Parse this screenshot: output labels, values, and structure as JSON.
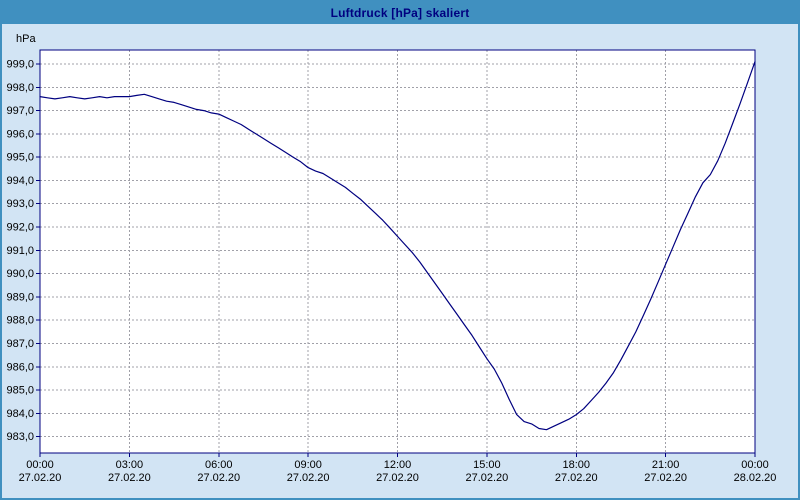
{
  "title": "Luftdruck [hPa] skaliert",
  "colors": {
    "titlebar_bg": "#4090c0",
    "titlebar_text": "#000080",
    "window_bg": "#d2e4f4",
    "plot_bg": "#ffffff",
    "plot_border": "#000080",
    "grid": "#a0a0a8",
    "line": "#000080",
    "tick_text": "#000000"
  },
  "chart_data": {
    "type": "line",
    "title": "Luftdruck [hPa] skaliert",
    "xlabel": "",
    "ylabel": "hPa",
    "xlim": [
      0,
      24
    ],
    "ylim": [
      982.3,
      999.6
    ],
    "grid": "dashed",
    "legend": "none",
    "y_ticks": [
      {
        "value": 999,
        "label": "999,0"
      },
      {
        "value": 998,
        "label": "998,0"
      },
      {
        "value": 997,
        "label": "997,0"
      },
      {
        "value": 996,
        "label": "996,0"
      },
      {
        "value": 995,
        "label": "995,0"
      },
      {
        "value": 994,
        "label": "994,0"
      },
      {
        "value": 993,
        "label": "993,0"
      },
      {
        "value": 992,
        "label": "992,0"
      },
      {
        "value": 991,
        "label": "991,0"
      },
      {
        "value": 990,
        "label": "990,0"
      },
      {
        "value": 989,
        "label": "989,0"
      },
      {
        "value": 988,
        "label": "988,0"
      },
      {
        "value": 987,
        "label": "987,0"
      },
      {
        "value": 986,
        "label": "986,0"
      },
      {
        "value": 985,
        "label": "985,0"
      },
      {
        "value": 984,
        "label": "984,0"
      },
      {
        "value": 983,
        "label": "983,0"
      }
    ],
    "x_ticks": [
      {
        "hour": 0,
        "time": "00:00",
        "date": "27.02.20"
      },
      {
        "hour": 3,
        "time": "03:00",
        "date": "27.02.20"
      },
      {
        "hour": 6,
        "time": "06:00",
        "date": "27.02.20"
      },
      {
        "hour": 9,
        "time": "09:00",
        "date": "27.02.20"
      },
      {
        "hour": 12,
        "time": "12:00",
        "date": "27.02.20"
      },
      {
        "hour": 15,
        "time": "15:00",
        "date": "27.02.20"
      },
      {
        "hour": 18,
        "time": "18:00",
        "date": "27.02.20"
      },
      {
        "hour": 21,
        "time": "21:00",
        "date": "27.02.20"
      },
      {
        "hour": 24,
        "time": "00:00",
        "date": "28.02.20"
      }
    ],
    "series": [
      {
        "name": "Luftdruck",
        "points": [
          [
            0.0,
            997.6
          ],
          [
            0.25,
            997.55
          ],
          [
            0.5,
            997.5
          ],
          [
            0.75,
            997.55
          ],
          [
            1.0,
            997.6
          ],
          [
            1.25,
            997.55
          ],
          [
            1.5,
            997.5
          ],
          [
            1.75,
            997.55
          ],
          [
            2.0,
            997.6
          ],
          [
            2.25,
            997.55
          ],
          [
            2.5,
            997.6
          ],
          [
            2.75,
            997.6
          ],
          [
            3.0,
            997.6
          ],
          [
            3.25,
            997.65
          ],
          [
            3.5,
            997.7
          ],
          [
            3.75,
            997.6
          ],
          [
            4.0,
            997.5
          ],
          [
            4.25,
            997.4
          ],
          [
            4.5,
            997.35
          ],
          [
            4.75,
            997.25
          ],
          [
            5.0,
            997.15
          ],
          [
            5.25,
            997.05
          ],
          [
            5.5,
            997.0
          ],
          [
            5.75,
            996.9
          ],
          [
            6.0,
            996.85
          ],
          [
            6.25,
            996.7
          ],
          [
            6.5,
            996.55
          ],
          [
            6.75,
            996.4
          ],
          [
            7.0,
            996.2
          ],
          [
            7.25,
            996.0
          ],
          [
            7.5,
            995.8
          ],
          [
            7.75,
            995.6
          ],
          [
            8.0,
            995.4
          ],
          [
            8.25,
            995.2
          ],
          [
            8.5,
            995.0
          ],
          [
            8.75,
            994.8
          ],
          [
            9.0,
            994.55
          ],
          [
            9.25,
            994.4
          ],
          [
            9.5,
            994.3
          ],
          [
            9.75,
            994.1
          ],
          [
            10.0,
            993.9
          ],
          [
            10.25,
            993.7
          ],
          [
            10.5,
            993.45
          ],
          [
            10.75,
            993.2
          ],
          [
            11.0,
            992.9
          ],
          [
            11.25,
            992.6
          ],
          [
            11.5,
            992.3
          ],
          [
            11.75,
            991.95
          ],
          [
            12.0,
            991.6
          ],
          [
            12.25,
            991.25
          ],
          [
            12.5,
            990.9
          ],
          [
            12.75,
            990.5
          ],
          [
            13.0,
            990.05
          ],
          [
            13.25,
            989.6
          ],
          [
            13.5,
            989.15
          ],
          [
            13.75,
            988.7
          ],
          [
            14.0,
            988.25
          ],
          [
            14.25,
            987.8
          ],
          [
            14.5,
            987.35
          ],
          [
            14.75,
            986.85
          ],
          [
            15.0,
            986.35
          ],
          [
            15.25,
            985.9
          ],
          [
            15.5,
            985.3
          ],
          [
            15.75,
            984.6
          ],
          [
            16.0,
            983.95
          ],
          [
            16.25,
            983.65
          ],
          [
            16.5,
            983.55
          ],
          [
            16.75,
            983.35
          ],
          [
            17.0,
            983.3
          ],
          [
            17.25,
            983.45
          ],
          [
            17.5,
            983.6
          ],
          [
            17.75,
            983.75
          ],
          [
            18.0,
            983.95
          ],
          [
            18.25,
            984.2
          ],
          [
            18.5,
            984.55
          ],
          [
            18.75,
            984.9
          ],
          [
            19.0,
            985.3
          ],
          [
            19.25,
            985.75
          ],
          [
            19.5,
            986.3
          ],
          [
            19.75,
            986.9
          ],
          [
            20.0,
            987.5
          ],
          [
            20.25,
            988.2
          ],
          [
            20.5,
            988.9
          ],
          [
            20.75,
            989.65
          ],
          [
            21.0,
            990.4
          ],
          [
            21.25,
            991.15
          ],
          [
            21.5,
            991.9
          ],
          [
            21.75,
            992.6
          ],
          [
            22.0,
            993.3
          ],
          [
            22.25,
            993.9
          ],
          [
            22.5,
            994.25
          ],
          [
            22.75,
            994.85
          ],
          [
            23.0,
            995.6
          ],
          [
            23.25,
            996.45
          ],
          [
            23.5,
            997.3
          ],
          [
            23.75,
            998.2
          ],
          [
            24.0,
            999.1
          ]
        ]
      }
    ]
  }
}
